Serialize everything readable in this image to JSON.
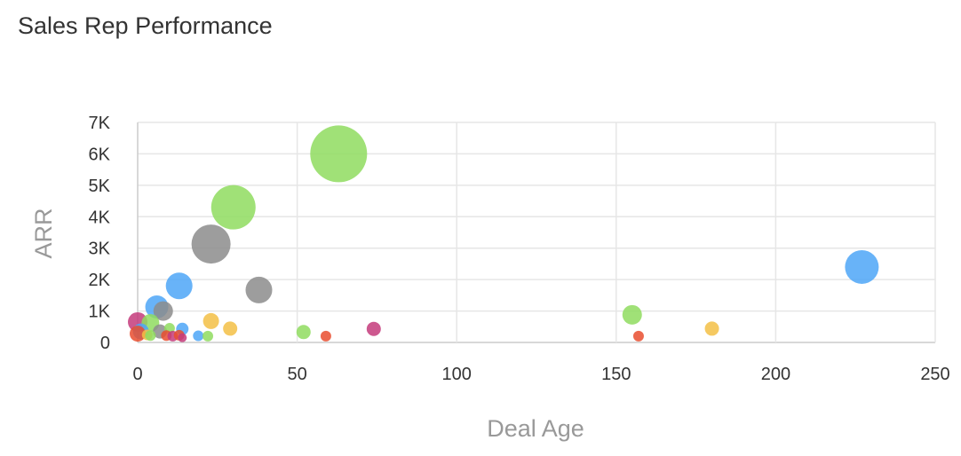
{
  "chart_data": {
    "type": "scatter",
    "title": "Sales Rep Performance",
    "xlabel": "Deal Age",
    "ylabel": "ARR",
    "xlim": [
      0,
      250
    ],
    "ylim": [
      0,
      7000
    ],
    "x_ticks": [
      0,
      50,
      100,
      150,
      200,
      250
    ],
    "x_tick_labels": [
      "0",
      "50",
      "100",
      "150",
      "200",
      "250"
    ],
    "y_ticks": [
      0,
      1000,
      2000,
      3000,
      4000,
      5000,
      6000,
      7000
    ],
    "y_tick_labels": [
      "0",
      "1K",
      "2K",
      "3K",
      "4K",
      "5K",
      "6K",
      "7K"
    ],
    "grid": true,
    "legend": "none",
    "bubble_size_unit": "relative",
    "colors": {
      "green": "#8fdc5f",
      "gray": "#8c8c8c",
      "blue": "#4da6f7",
      "yellow": "#f3c045",
      "red": "#e94e2f",
      "magenta": "#c43b7b",
      "grid": "#e6e6e6",
      "axis": "#cccccc"
    },
    "points": [
      {
        "x": 63,
        "y": 6000,
        "size": 32,
        "color": "green"
      },
      {
        "x": 30,
        "y": 4300,
        "size": 25,
        "color": "green"
      },
      {
        "x": 23,
        "y": 3130,
        "size": 22,
        "color": "gray"
      },
      {
        "x": 227,
        "y": 2400,
        "size": 19,
        "color": "blue"
      },
      {
        "x": 13,
        "y": 1800,
        "size": 15,
        "color": "blue"
      },
      {
        "x": 38,
        "y": 1670,
        "size": 15,
        "color": "gray"
      },
      {
        "x": 6,
        "y": 1130,
        "size": 13,
        "color": "blue"
      },
      {
        "x": 8,
        "y": 1000,
        "size": 11,
        "color": "gray"
      },
      {
        "x": 155,
        "y": 880,
        "size": 11,
        "color": "green"
      },
      {
        "x": 0,
        "y": 650,
        "size": 11,
        "color": "magenta"
      },
      {
        "x": 4,
        "y": 620,
        "size": 10,
        "color": "green"
      },
      {
        "x": 23,
        "y": 680,
        "size": 9,
        "color": "yellow"
      },
      {
        "x": 1,
        "y": 350,
        "size": 9,
        "color": "blue"
      },
      {
        "x": 0,
        "y": 280,
        "size": 9,
        "color": "red"
      },
      {
        "x": 7,
        "y": 350,
        "size": 8,
        "color": "gray"
      },
      {
        "x": 14,
        "y": 430,
        "size": 7,
        "color": "blue"
      },
      {
        "x": 29,
        "y": 440,
        "size": 8,
        "color": "yellow"
      },
      {
        "x": 52,
        "y": 330,
        "size": 8,
        "color": "green"
      },
      {
        "x": 74,
        "y": 430,
        "size": 8,
        "color": "magenta"
      },
      {
        "x": 180,
        "y": 440,
        "size": 8,
        "color": "yellow"
      },
      {
        "x": 10,
        "y": 450,
        "size": 6,
        "color": "green"
      },
      {
        "x": 3,
        "y": 240,
        "size": 6,
        "color": "yellow"
      },
      {
        "x": 4,
        "y": 220,
        "size": 6,
        "color": "green"
      },
      {
        "x": 9,
        "y": 220,
        "size": 6,
        "color": "red"
      },
      {
        "x": 11,
        "y": 200,
        "size": 6,
        "color": "magenta"
      },
      {
        "x": 13,
        "y": 230,
        "size": 6,
        "color": "red"
      },
      {
        "x": 14,
        "y": 150,
        "size": 5,
        "color": "magenta"
      },
      {
        "x": 19,
        "y": 210,
        "size": 6,
        "color": "blue"
      },
      {
        "x": 22,
        "y": 200,
        "size": 6,
        "color": "green"
      },
      {
        "x": 59,
        "y": 200,
        "size": 6,
        "color": "red"
      },
      {
        "x": 157,
        "y": 200,
        "size": 6,
        "color": "red"
      }
    ]
  }
}
